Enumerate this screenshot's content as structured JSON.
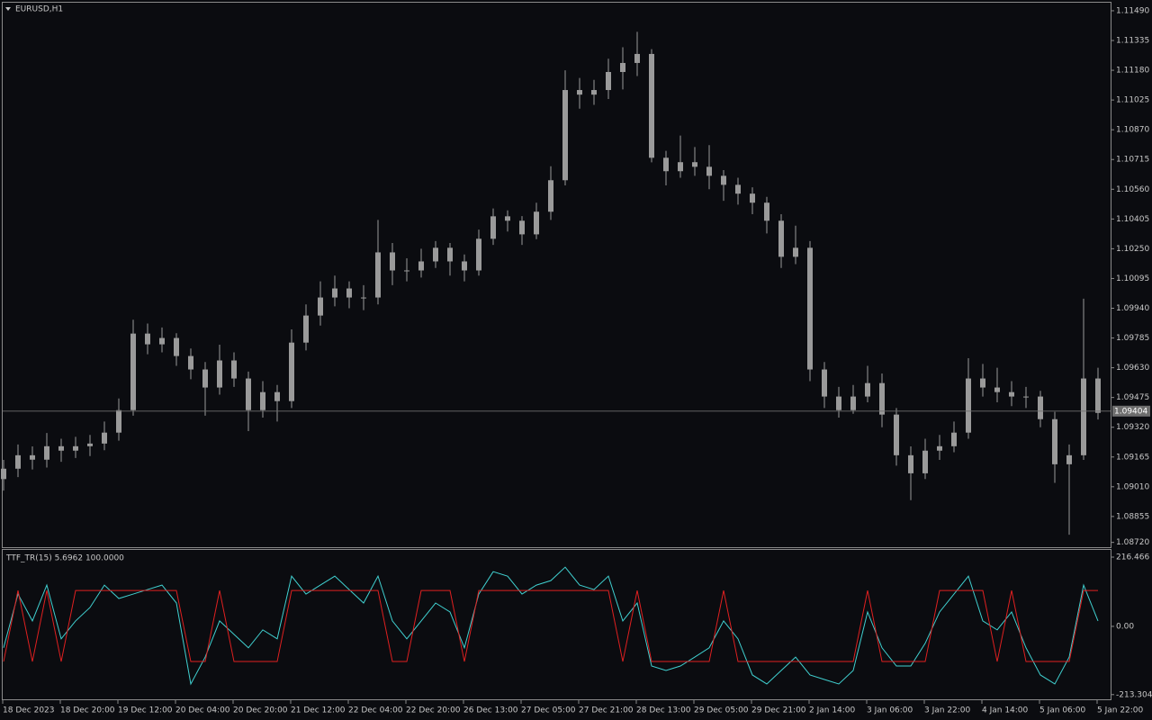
{
  "chart_data": [
    {
      "type": "candlestick",
      "title": "EURUSD,H1",
      "color": "#9a9a9a",
      "last_price": 1.09404,
      "categories": [
        "18 Dec 2023",
        null,
        null,
        null,
        "18 Dec 20:00",
        null,
        null,
        null,
        "19 Dec 12:00",
        null,
        null,
        null,
        "20 Dec 04:00",
        null,
        null,
        null,
        "20 Dec 20:00",
        null,
        null,
        null,
        "21 Dec 12:00",
        null,
        null,
        null,
        "22 Dec 04:00",
        null,
        null,
        null,
        "22 Dec 20:00",
        null,
        null,
        null,
        "26 Dec 13:00",
        null,
        null,
        null,
        "27 Dec 05:00",
        null,
        null,
        null,
        "27 Dec 21:00",
        null,
        null,
        null,
        "28 Dec 13:00",
        null,
        null,
        null,
        "29 Dec 05:00",
        null,
        null,
        null,
        "29 Dec 21:00",
        null,
        null,
        null,
        "2 Jan 14:00",
        null,
        null,
        null,
        "3 Jan 06:00",
        null,
        null,
        null,
        "3 Jan 22:00",
        null,
        null,
        null,
        "4 Jan 14:00",
        null,
        null,
        null,
        "5 Jan 06:00",
        null,
        null,
        null,
        "5 Jan 22:00"
      ],
      "candles": [
        [
          1.0905,
          1.0915,
          1.0899,
          1.09104
        ],
        [
          1.09104,
          1.0923,
          1.0906,
          1.09174
        ],
        [
          1.09174,
          1.0922,
          1.091,
          1.09151
        ],
        [
          1.09151,
          1.0929,
          1.0911,
          1.09221
        ],
        [
          1.09221,
          1.0926,
          1.0914,
          1.09198
        ],
        [
          1.09198,
          1.0927,
          1.0916,
          1.09221
        ],
        [
          1.09221,
          1.0928,
          1.0917,
          1.09235
        ],
        [
          1.09235,
          1.0935,
          1.092,
          1.09292
        ],
        [
          1.09292,
          1.0947,
          1.0925,
          1.09409
        ],
        [
          1.09409,
          1.0988,
          1.0938,
          1.09808
        ],
        [
          1.09808,
          1.0986,
          1.097,
          1.09752
        ],
        [
          1.09752,
          1.0984,
          1.0971,
          1.09785
        ],
        [
          1.09785,
          1.0981,
          1.0964,
          1.09691
        ],
        [
          1.09691,
          1.0973,
          1.0957,
          1.09621
        ],
        [
          1.09621,
          1.0966,
          1.0938,
          1.09527
        ],
        [
          1.09527,
          1.0975,
          1.0949,
          1.09668
        ],
        [
          1.09668,
          1.0971,
          1.0953,
          1.09574
        ],
        [
          1.09574,
          1.0961,
          1.093,
          1.09409
        ],
        [
          1.09409,
          1.0956,
          1.0937,
          1.09503
        ],
        [
          1.09503,
          1.0954,
          1.0935,
          1.09456
        ],
        [
          1.09456,
          1.0983,
          1.0942,
          1.09761
        ],
        [
          1.09761,
          1.0996,
          1.0972,
          1.09902
        ],
        [
          1.09902,
          1.1008,
          1.0985,
          1.09996
        ],
        [
          1.09996,
          1.1011,
          1.0995,
          1.10043
        ],
        [
          1.10043,
          1.1008,
          1.0994,
          1.09996
        ],
        [
          1.09996,
          1.1006,
          1.0993,
          1.09996
        ],
        [
          1.09996,
          1.104,
          1.0996,
          1.10231
        ],
        [
          1.10231,
          1.1028,
          1.1006,
          1.10137
        ],
        [
          1.10137,
          1.102,
          1.1008,
          1.10137
        ],
        [
          1.10137,
          1.1025,
          1.101,
          1.10184
        ],
        [
          1.10184,
          1.1029,
          1.1015,
          1.10255
        ],
        [
          1.10255,
          1.1028,
          1.1011,
          1.10184
        ],
        [
          1.10184,
          1.1022,
          1.1008,
          1.10137
        ],
        [
          1.10137,
          1.1035,
          1.1011,
          1.10302
        ],
        [
          1.10302,
          1.1046,
          1.1027,
          1.10419
        ],
        [
          1.10419,
          1.1045,
          1.1034,
          1.10396
        ],
        [
          1.10396,
          1.1042,
          1.1027,
          1.10325
        ],
        [
          1.10325,
          1.1049,
          1.103,
          1.10443
        ],
        [
          1.10443,
          1.1068,
          1.104,
          1.10607
        ],
        [
          1.10607,
          1.1118,
          1.1058,
          1.11077
        ],
        [
          1.11077,
          1.1114,
          1.1098,
          1.11053
        ],
        [
          1.11053,
          1.1113,
          1.11,
          1.11077
        ],
        [
          1.11077,
          1.1124,
          1.1103,
          1.11171
        ],
        [
          1.11171,
          1.113,
          1.1108,
          1.11218
        ],
        [
          1.11218,
          1.1138,
          1.1115,
          1.11265
        ],
        [
          1.11265,
          1.1129,
          1.107,
          1.10724
        ],
        [
          1.10724,
          1.1076,
          1.1058,
          1.10654
        ],
        [
          1.10654,
          1.1084,
          1.1062,
          1.10701
        ],
        [
          1.10701,
          1.1078,
          1.1063,
          1.10677
        ],
        [
          1.10677,
          1.1079,
          1.1056,
          1.1063
        ],
        [
          1.1063,
          1.1066,
          1.105,
          1.10583
        ],
        [
          1.10583,
          1.1062,
          1.1048,
          1.10537
        ],
        [
          1.10537,
          1.1057,
          1.1043,
          1.1049
        ],
        [
          1.1049,
          1.1052,
          1.1033,
          1.10396
        ],
        [
          1.10396,
          1.1043,
          1.1015,
          1.10208
        ],
        [
          1.10208,
          1.1037,
          1.1017,
          1.10255
        ],
        [
          1.10255,
          1.1029,
          1.0956,
          1.09621
        ],
        [
          1.09621,
          1.0966,
          1.0942,
          1.0948
        ],
        [
          1.0948,
          1.0953,
          1.0937,
          1.09409
        ],
        [
          1.09409,
          1.0954,
          1.0939,
          1.0948
        ],
        [
          1.0948,
          1.0964,
          1.0945,
          1.0955
        ],
        [
          1.0955,
          1.096,
          1.0932,
          1.09386
        ],
        [
          1.09386,
          1.0942,
          1.0912,
          1.09174
        ],
        [
          1.09174,
          1.0922,
          1.0894,
          1.0908
        ],
        [
          1.0908,
          1.0926,
          1.0905,
          1.09198
        ],
        [
          1.09198,
          1.0928,
          1.0915,
          1.09221
        ],
        [
          1.09221,
          1.0935,
          1.0919,
          1.09292
        ],
        [
          1.09292,
          1.0968,
          1.0926,
          1.09574
        ],
        [
          1.09574,
          1.0965,
          1.0948,
          1.09527
        ],
        [
          1.09527,
          1.0963,
          1.0945,
          1.09503
        ],
        [
          1.09503,
          1.0956,
          1.0943,
          1.0948
        ],
        [
          1.0948,
          1.0953,
          1.0942,
          1.0948
        ],
        [
          1.0948,
          1.0951,
          1.0932,
          1.09362
        ],
        [
          1.09362,
          1.094,
          1.0903,
          1.09127
        ],
        [
          1.09127,
          1.0923,
          1.0876,
          1.09174
        ],
        [
          1.09174,
          1.0999,
          1.0915,
          1.09574
        ],
        [
          1.09574,
          1.0963,
          1.0936,
          1.09395
        ]
      ],
      "ylim": [
        1.08695,
        1.11532
      ],
      "yticks": [
        {
          "value": 1.1149,
          "label": "1.11490"
        },
        1.11335,
        {
          "value": 1.1118,
          "label": "1.11180"
        },
        1.11025,
        {
          "value": 1.1087,
          "label": "1.10870"
        },
        1.10715,
        {
          "value": 1.1056,
          "label": "1.10560"
        },
        1.10405,
        {
          "value": 1.1025,
          "label": "1.10250"
        },
        1.10095,
        {
          "value": 1.0994,
          "label": "1.09940"
        },
        1.09785,
        {
          "value": 1.0963,
          "label": "1.09630"
        },
        1.09475,
        {
          "value": 1.0932,
          "label": "1.09320"
        },
        1.09165,
        {
          "value": 1.0901,
          "label": "1.09010"
        },
        1.08855,
        {
          "value": 1.0872,
          "label": "1.08720"
        }
      ]
    },
    {
      "type": "line",
      "title": "TTF_TR(15) 5.6962 100.0000",
      "series": [
        {
          "color": "#40d0d0",
          "values": [
            -67,
            101,
            17,
            129,
            -39,
            17,
            59,
            129,
            87,
            101,
            115,
            129,
            73,
            -180,
            -96,
            17,
            -25,
            -67,
            -11,
            -39,
            157,
            101,
            129,
            157,
            115,
            73,
            157,
            17,
            -39,
            17,
            73,
            45,
            -67,
            101,
            171,
            157,
            101,
            129,
            143,
            185,
            129,
            115,
            157,
            17,
            73,
            -124,
            -138,
            -124,
            -96,
            -67,
            17,
            -39,
            -152,
            -180,
            -138,
            -96,
            -152,
            -166,
            -180,
            -138,
            45,
            -67,
            -124,
            -124,
            -53,
            45,
            101,
            157,
            17,
            -11,
            45,
            -67,
            -152,
            -180,
            -96,
            129,
            17
          ]
        },
        {
          "color": "#e02020",
          "values": [
            -110,
            112,
            -110,
            112,
            -110,
            112,
            112,
            112,
            112,
            112,
            112,
            112,
            112,
            -110,
            -110,
            112,
            -110,
            -110,
            -110,
            -110,
            112,
            112,
            112,
            112,
            112,
            112,
            112,
            -110,
            -110,
            112,
            112,
            112,
            -110,
            112,
            112,
            112,
            112,
            112,
            112,
            112,
            112,
            112,
            112,
            -110,
            112,
            -110,
            -110,
            -110,
            -110,
            -110,
            112,
            -110,
            -110,
            -110,
            -110,
            -110,
            -110,
            -110,
            -110,
            -110,
            112,
            -110,
            -110,
            -110,
            -110,
            112,
            112,
            112,
            112,
            -110,
            112,
            -110,
            -110,
            -110,
            -110,
            112,
            112
          ]
        }
      ],
      "ylim": [
        -228,
        239
      ],
      "yticks": [
        216.466,
        {
          "value": 0,
          "label": "0.00"
        },
        -213.3045
      ]
    }
  ]
}
